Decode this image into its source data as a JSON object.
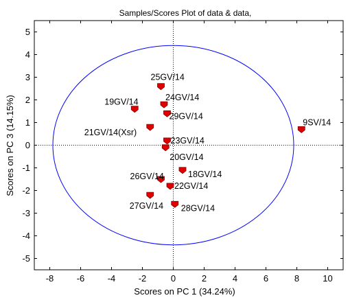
{
  "chart_data": {
    "type": "scatter",
    "title": "Samples/Scores Plot of data & data,",
    "xlabel": "Scores on PC 1 (34.24%)",
    "ylabel": "Scores on PC 3 (14.15%)",
    "xlim": [
      -9,
      11
    ],
    "ylim": [
      -5.5,
      5.5
    ],
    "xticks": [
      -8,
      -6,
      -4,
      -2,
      0,
      2,
      4,
      6,
      8,
      10
    ],
    "yticks": [
      -5,
      -4,
      -3,
      -2,
      -1,
      0,
      1,
      2,
      3,
      4,
      5
    ],
    "grid": false,
    "zero_lines": true,
    "confidence_ellipse": {
      "center": [
        0,
        0
      ],
      "semi_axis_x": 7.8,
      "semi_axis_y": 4.4
    },
    "colors": {
      "marker": "#e00000",
      "marker_edge": "#800000",
      "ellipse": "#0000ff",
      "axes": "#000000"
    },
    "points": [
      {
        "label": "25GV/14",
        "x": -0.8,
        "y": 2.6
      },
      {
        "label": "24GV/14",
        "x": -0.6,
        "y": 1.8
      },
      {
        "label": "19GV/14",
        "x": -2.5,
        "y": 1.6
      },
      {
        "label": "29GV/14",
        "x": -0.4,
        "y": 1.4
      },
      {
        "label": "9SV/14",
        "x": 8.3,
        "y": 0.7
      },
      {
        "label": "21GV/14(Xsr)",
        "x": -1.5,
        "y": 0.8
      },
      {
        "label": "23GV/14",
        "x": -0.4,
        "y": 0.2
      },
      {
        "label": "20GV/14",
        "x": -0.5,
        "y": -0.1
      },
      {
        "label": "18GV/14",
        "x": 0.6,
        "y": -1.1
      },
      {
        "label": "26GV/14",
        "x": -0.8,
        "y": -1.5
      },
      {
        "label": "22GV/14",
        "x": -0.2,
        "y": -1.8
      },
      {
        "label": "27GV/14",
        "x": -1.5,
        "y": -2.2
      },
      {
        "label": "28GV/14",
        "x": 0.1,
        "y": -2.6
      }
    ]
  }
}
